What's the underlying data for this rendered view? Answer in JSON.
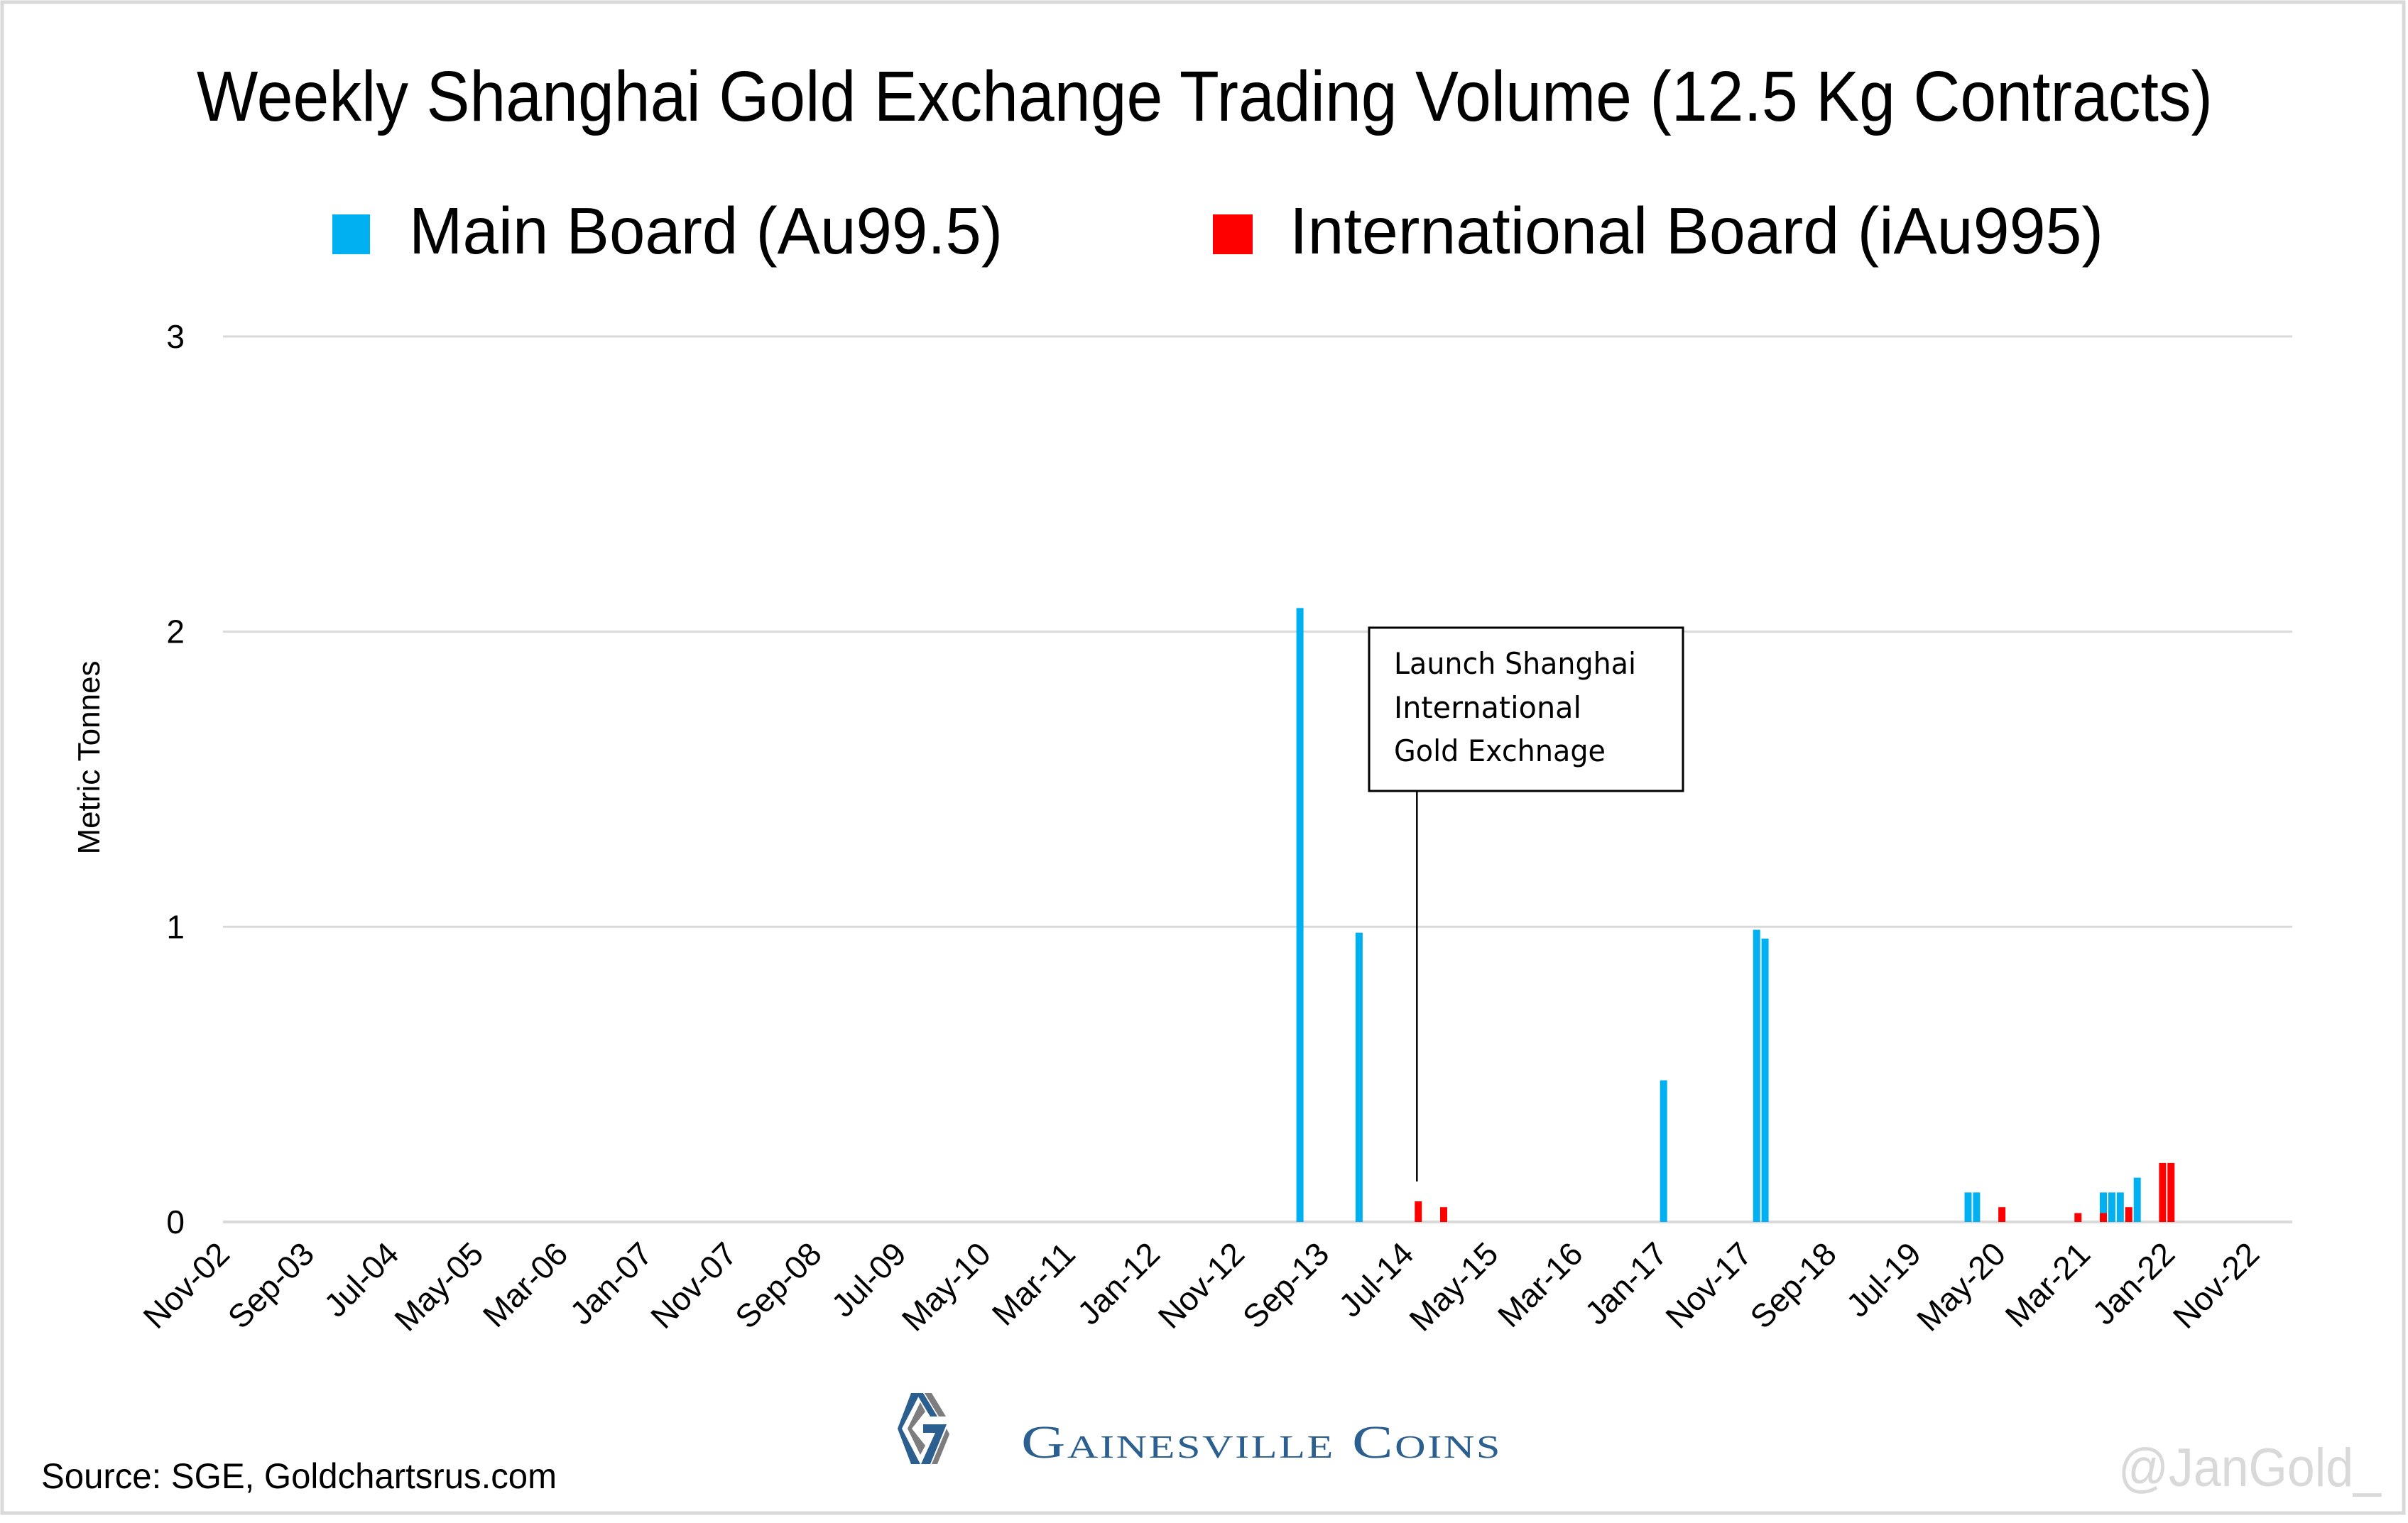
{
  "chart_data": {
    "type": "bar",
    "title": "Weekly Shanghai Gold Exchange Trading Volume (12.5 Kg Contracts)",
    "xlabel": "",
    "ylabel": "Metric Tonnes",
    "ylim": [
      0,
      3
    ],
    "yticks": [
      "0",
      "1",
      "2",
      "3"
    ],
    "grid": true,
    "legend_position": "top",
    "x_axis_type": "date",
    "x_range": [
      "2002-11",
      "2023-03"
    ],
    "xticks": [
      "Nov-02",
      "Sep-03",
      "Jul-04",
      "May-05",
      "Mar-06",
      "Jan-07",
      "Nov-07",
      "Sep-08",
      "Jul-09",
      "May-10",
      "Mar-11",
      "Jan-12",
      "Nov-12",
      "Sep-13",
      "Jul-14",
      "May-15",
      "Mar-16",
      "Jan-17",
      "Nov-17",
      "Sep-18",
      "Jul-19",
      "May-20",
      "Mar-21",
      "Jan-22",
      "Nov-22"
    ],
    "xtick_dates": [
      "2002-11",
      "2003-09",
      "2004-07",
      "2005-05",
      "2006-03",
      "2007-01",
      "2007-11",
      "2008-09",
      "2009-07",
      "2010-05",
      "2011-03",
      "2012-01",
      "2012-11",
      "2013-09",
      "2014-07",
      "2015-05",
      "2016-03",
      "2017-01",
      "2017-11",
      "2018-09",
      "2019-07",
      "2020-05",
      "2021-03",
      "2022-01",
      "2022-11"
    ],
    "series": [
      {
        "name": "Main Board (Au99.5)",
        "color": "#00b0f0",
        "points": [
          {
            "date": "2013-06",
            "value": 2.08
          },
          {
            "date": "2014-01",
            "value": 0.98
          },
          {
            "date": "2017-01",
            "value": 0.48
          },
          {
            "date": "2017-12",
            "value": 0.99
          },
          {
            "date": "2018-01",
            "value": 0.96
          },
          {
            "date": "2020-01",
            "value": 0.1
          },
          {
            "date": "2020-02",
            "value": 0.1
          },
          {
            "date": "2021-05",
            "value": 0.1
          },
          {
            "date": "2021-06",
            "value": 0.1
          },
          {
            "date": "2021-07",
            "value": 0.1
          },
          {
            "date": "2021-09",
            "value": 0.15
          }
        ]
      },
      {
        "name": "International Board (iAu995)",
        "color": "#ff0000",
        "points": [
          {
            "date": "2014-08",
            "value": 0.07
          },
          {
            "date": "2014-11",
            "value": 0.05
          },
          {
            "date": "2020-05",
            "value": 0.05
          },
          {
            "date": "2021-02",
            "value": 0.03
          },
          {
            "date": "2021-05",
            "value": 0.03
          },
          {
            "date": "2021-08",
            "value": 0.05
          },
          {
            "date": "2021-12",
            "value": 0.2
          },
          {
            "date": "2022-01",
            "value": 0.2
          }
        ]
      }
    ],
    "annotation": {
      "lines": [
        "Launch Shanghai",
        "International",
        "Gold Exchnage"
      ],
      "points_to_date": "2014-08"
    }
  },
  "footer": {
    "source": "Source: SGE, Goldchartsrus.com",
    "watermark": "@JanGold_"
  },
  "logo": {
    "brand": "Gainesville Coins",
    "primary_color": "#2a5f8f",
    "secondary_color": "#7d7d80"
  },
  "colors": {
    "gridline": "#d9d9d9",
    "axis_text": "#000000",
    "watermark": "#d9d9d9"
  }
}
